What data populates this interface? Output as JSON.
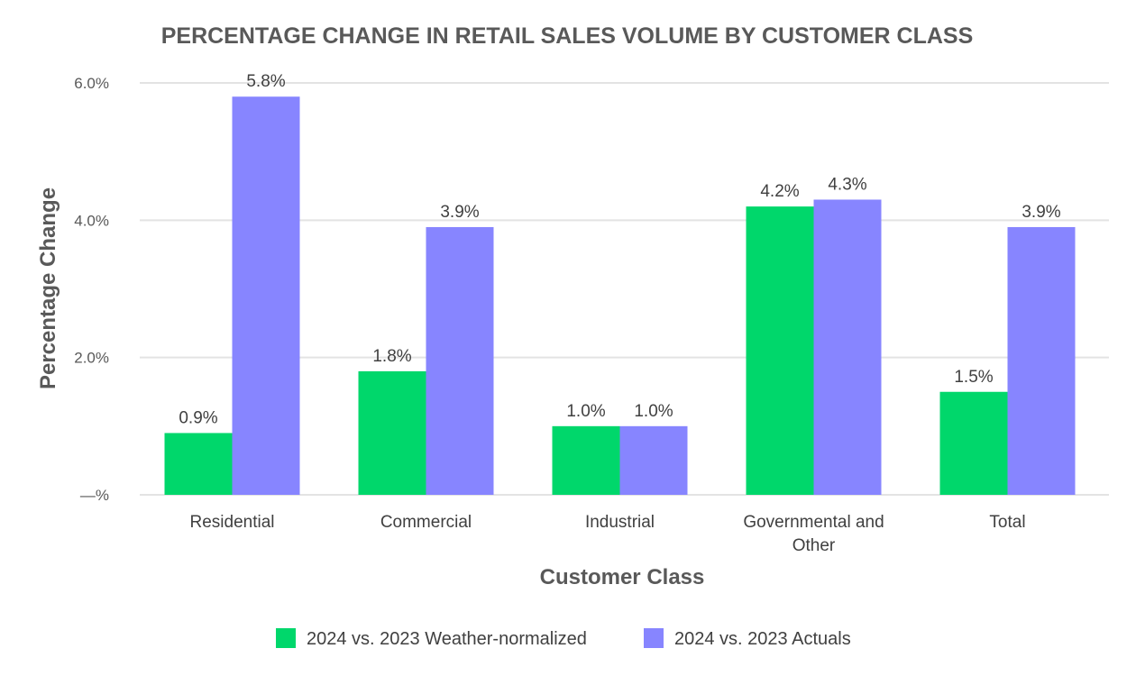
{
  "chart_data": {
    "type": "bar",
    "title": "PERCENTAGE CHANGE IN RETAIL SALES VOLUME BY CUSTOMER CLASS",
    "xlabel": "Customer Class",
    "ylabel": "Percentage Change",
    "categories": [
      [
        "Residential"
      ],
      [
        "Commercial"
      ],
      [
        "Industrial"
      ],
      [
        "Governmental and",
        "Other"
      ],
      [
        "Total"
      ]
    ],
    "series": [
      {
        "name": "2024 vs. 2023 Weather-normalized",
        "color": "#00d76b",
        "values": [
          0.9,
          1.8,
          1.0,
          4.2,
          1.5
        ],
        "labels": [
          "0.9%",
          "1.8%",
          "1.0%",
          "4.2%",
          "1.5%"
        ]
      },
      {
        "name": "2024 vs. 2023 Actuals",
        "color": "#8785ff",
        "values": [
          5.8,
          3.9,
          1.0,
          4.3,
          3.9
        ],
        "labels": [
          "5.8%",
          "3.9%",
          "1.0%",
          "4.3%",
          "3.9%"
        ]
      }
    ],
    "yticks": [
      {
        "value": 0,
        "label": "—%"
      },
      {
        "value": 2,
        "label": "2.0%"
      },
      {
        "value": 4,
        "label": "4.0%"
      },
      {
        "value": 6,
        "label": "6.0%"
      }
    ],
    "ylim": [
      0,
      6
    ],
    "grid": true,
    "legend_position": "bottom"
  }
}
